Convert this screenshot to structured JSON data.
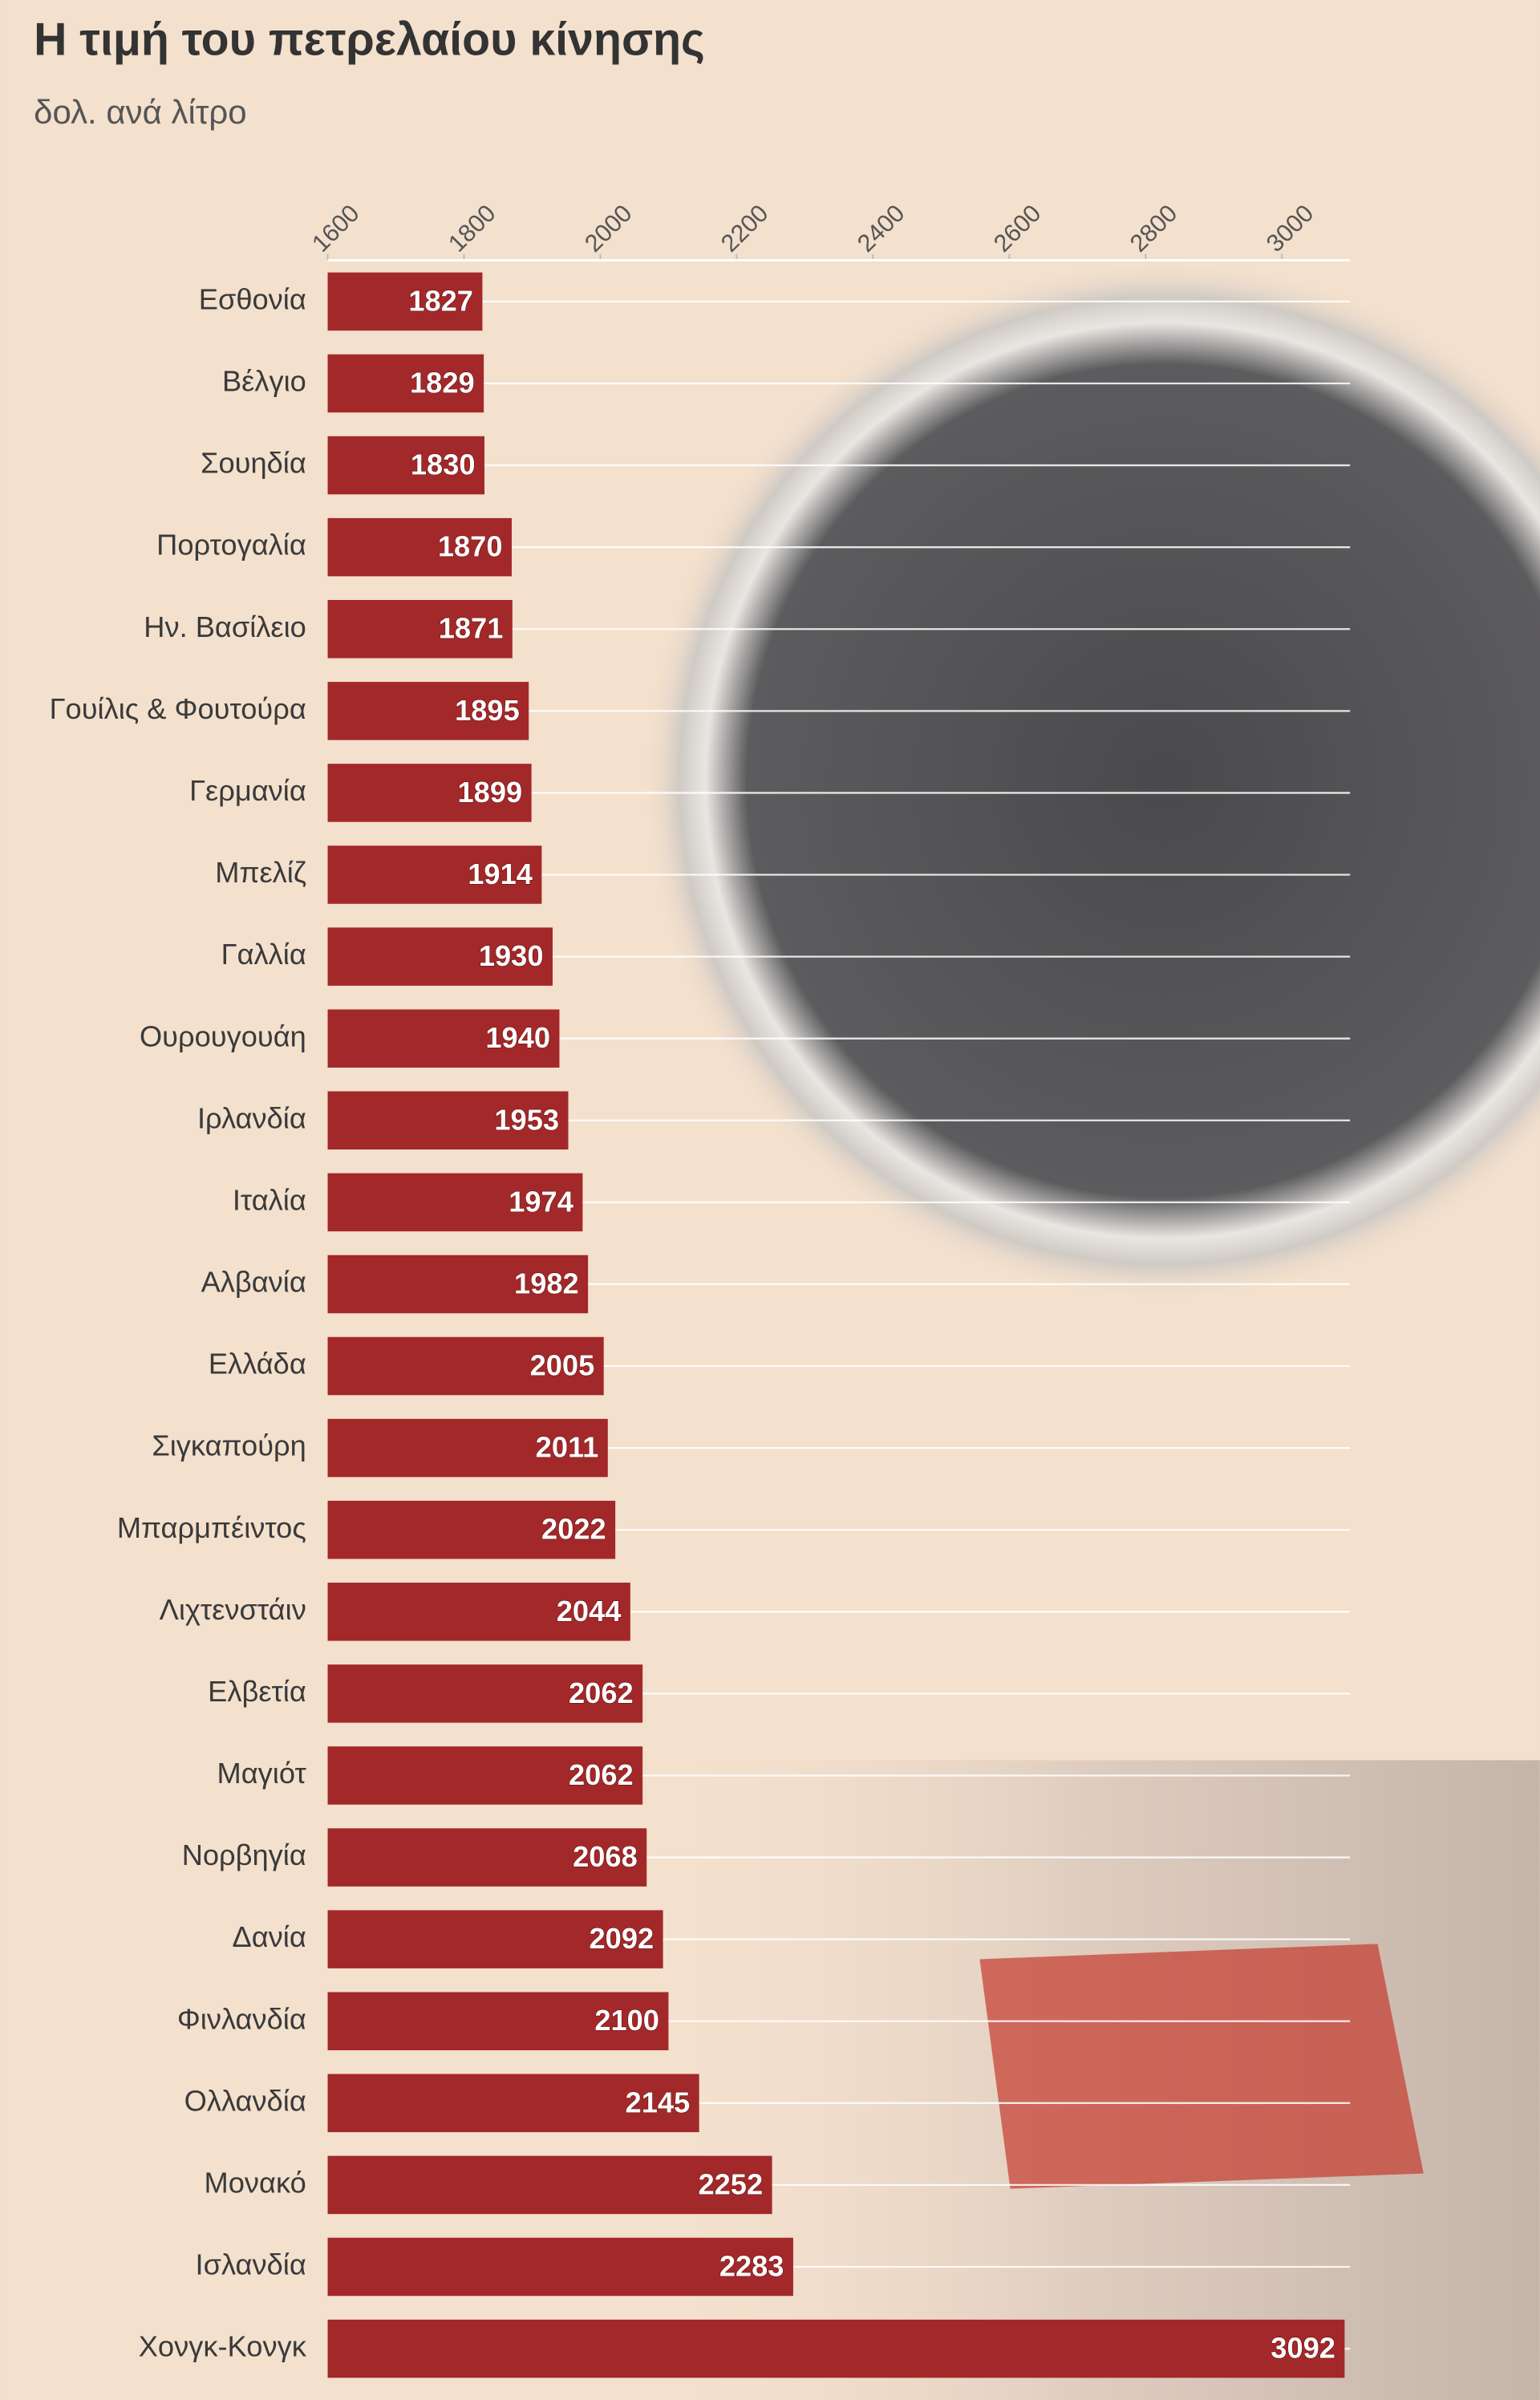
{
  "chart_data": {
    "type": "bar",
    "orientation": "horizontal",
    "title": "Η τιμή του πετρελαίου κίνησης",
    "subtitle": "δολ. ανά λίτρο",
    "categories": [
      "Εσθονία",
      "Βέλγιο",
      "Σουηδία",
      "Πορτογαλία",
      "Ην. Βασίλειο",
      "Γουίλις & Φουτούρα",
      "Γερμανία",
      "Μπελίζ",
      "Γαλλία",
      "Ουρουγουάη",
      "Ιρλανδία",
      "Ιταλία",
      "Αλβανία",
      "Ελλάδα",
      "Σιγκαπούρη",
      "Μπαρμπέιντος",
      "Λιχτενστάιν",
      "Ελβετία",
      "Μαγιότ",
      "Νορβηγία",
      "Δανία",
      "Φινλανδία",
      "Ολλανδία",
      "Μονακό",
      "Ισλανδία",
      "Χονγκ-Κονγκ"
    ],
    "values": [
      1827,
      1829,
      1830,
      1870,
      1871,
      1895,
      1899,
      1914,
      1930,
      1940,
      1953,
      1974,
      1982,
      2005,
      2011,
      2022,
      2044,
      2062,
      2062,
      2068,
      2092,
      2100,
      2145,
      2252,
      2283,
      3092
    ],
    "color": "#a3282a",
    "xlim": [
      1600,
      3100
    ],
    "xticks": [
      1600,
      1800,
      2000,
      2200,
      2400,
      2600,
      2800,
      3000
    ]
  }
}
